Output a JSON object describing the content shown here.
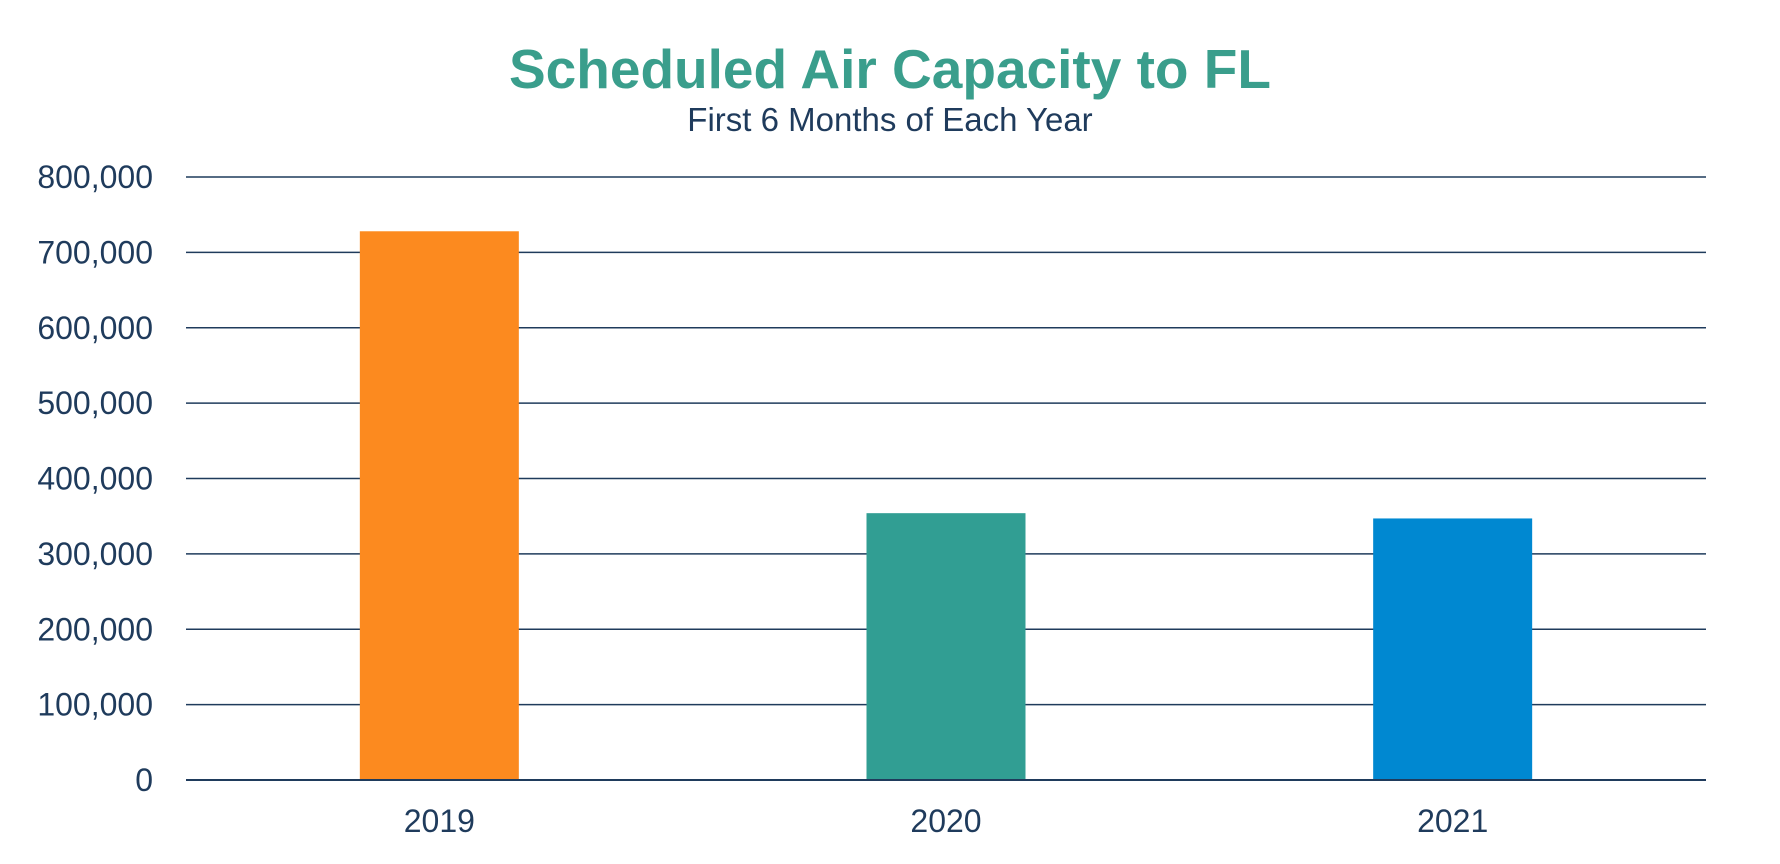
{
  "chart_data": {
    "type": "bar",
    "title": "Scheduled Air Capacity to FL",
    "subtitle": "First 6 Months of Each Year",
    "xlabel": "",
    "ylabel": "",
    "categories": [
      "2019",
      "2020",
      "2021"
    ],
    "values": [
      728000,
      354000,
      347000
    ],
    "ylim": [
      0,
      800000
    ],
    "yticks": [
      0,
      100000,
      200000,
      300000,
      400000,
      500000,
      600000,
      700000,
      800000
    ],
    "ytick_labels": [
      "0",
      "100,000",
      "200,000",
      "300,000",
      "400,000",
      "500,000",
      "600,000",
      "700,000",
      "800,000"
    ],
    "bar_colors": [
      "#fc8a1f",
      "#319e93",
      "#0088d1"
    ],
    "grid": true,
    "legend": "none"
  },
  "colors": {
    "title": "#3a9e8c",
    "text": "#1f3b5c",
    "gridline": "#1f3b5c"
  }
}
